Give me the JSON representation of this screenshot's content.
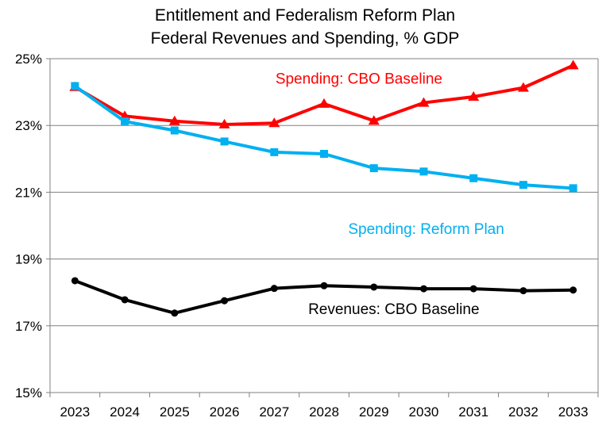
{
  "chart_data": {
    "type": "line",
    "title_lines": [
      "Entitlement and Federalism Reform Plan",
      "Federal Revenues and Spending, % GDP"
    ],
    "xlabel": "",
    "ylabel": "",
    "categories": [
      "2023",
      "2024",
      "2025",
      "2026",
      "2027",
      "2028",
      "2029",
      "2030",
      "2031",
      "2032",
      "2033"
    ],
    "ylim": [
      15,
      25
    ],
    "yticks": [
      15,
      17,
      19,
      21,
      23,
      25
    ],
    "ytick_labels": [
      "15%",
      "17%",
      "19%",
      "21%",
      "23%",
      "25%"
    ],
    "grid": true,
    "legend": "none",
    "series": [
      {
        "name": "Spending: CBO Baseline",
        "color": "#ff0000",
        "marker": "triangle",
        "values": [
          24.15,
          23.28,
          23.13,
          23.03,
          23.07,
          23.65,
          23.14,
          23.68,
          23.86,
          24.13,
          24.8
        ]
      },
      {
        "name": "Spending: Reform Plan",
        "color": "#00b0f0",
        "marker": "square",
        "values": [
          24.18,
          23.12,
          22.85,
          22.52,
          22.2,
          22.15,
          21.72,
          21.62,
          21.42,
          21.22,
          21.12
        ]
      },
      {
        "name": "Revenues: CBO Baseline",
        "color": "#000000",
        "marker": "circle",
        "values": [
          18.35,
          17.78,
          17.38,
          17.75,
          18.12,
          18.2,
          18.16,
          18.11,
          18.11,
          18.05,
          18.07
        ]
      }
    ]
  }
}
